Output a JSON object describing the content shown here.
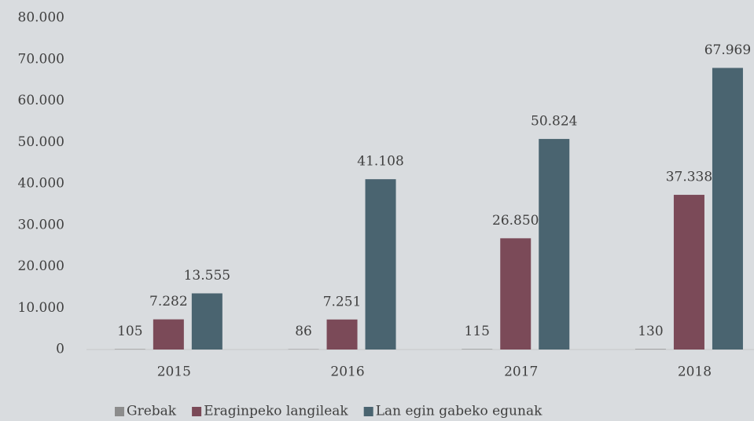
{
  "chart_data": {
    "type": "bar",
    "categories": [
      "2015",
      "2016",
      "2017",
      "2018"
    ],
    "series": [
      {
        "name": "Grebak",
        "color": "#8c8c8c",
        "values": [
          105,
          86,
          115,
          130
        ],
        "value_labels": [
          "105",
          "86",
          "115",
          "130"
        ]
      },
      {
        "name": "Eraginpeko langileak",
        "color": "#7b4a58",
        "values": [
          7282,
          7251,
          26850,
          37338
        ],
        "value_labels": [
          "7.282",
          "7.251",
          "26.850",
          "37.338"
        ]
      },
      {
        "name": "Lan egin gabeko egunak",
        "color": "#4a6470",
        "values": [
          13555,
          41108,
          50824,
          67969
        ],
        "value_labels": [
          "13.555",
          "41.108",
          "50.824",
          "67.969"
        ]
      }
    ],
    "ylim": [
      0,
      80000
    ],
    "yticks": [
      {
        "value": 0,
        "label": "0"
      },
      {
        "value": 10000,
        "label": "10.000"
      },
      {
        "value": 20000,
        "label": "20.000"
      },
      {
        "value": 30000,
        "label": "30.000"
      },
      {
        "value": 40000,
        "label": "40.000"
      },
      {
        "value": 50000,
        "label": "50.000"
      },
      {
        "value": 60000,
        "label": "60.000"
      },
      {
        "value": 70000,
        "label": "70.000"
      },
      {
        "value": 80000,
        "label": "80.000"
      }
    ],
    "grid": false,
    "legend": "bottom"
  }
}
